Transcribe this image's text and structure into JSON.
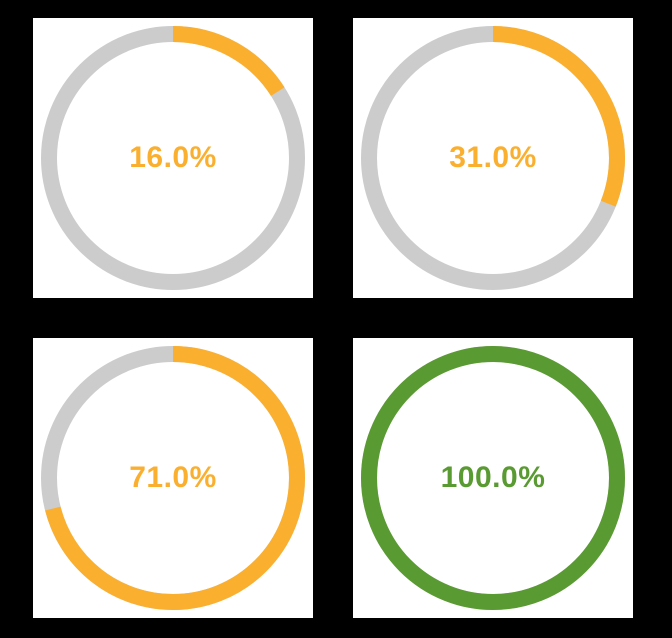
{
  "colors": {
    "background": "#000000",
    "tile": "#ffffff",
    "track": "#cccccc",
    "in_progress": "#fbaf2f",
    "complete": "#5a9a32"
  },
  "progress_rings": [
    {
      "label": "16.0%",
      "progress": 0.16,
      "state": "in_progress"
    },
    {
      "label": "31.0%",
      "progress": 0.31,
      "state": "in_progress"
    },
    {
      "label": "71.0%",
      "progress": 0.71,
      "state": "in_progress"
    },
    {
      "label": "100.0%",
      "progress": 1.0,
      "state": "complete"
    }
  ]
}
